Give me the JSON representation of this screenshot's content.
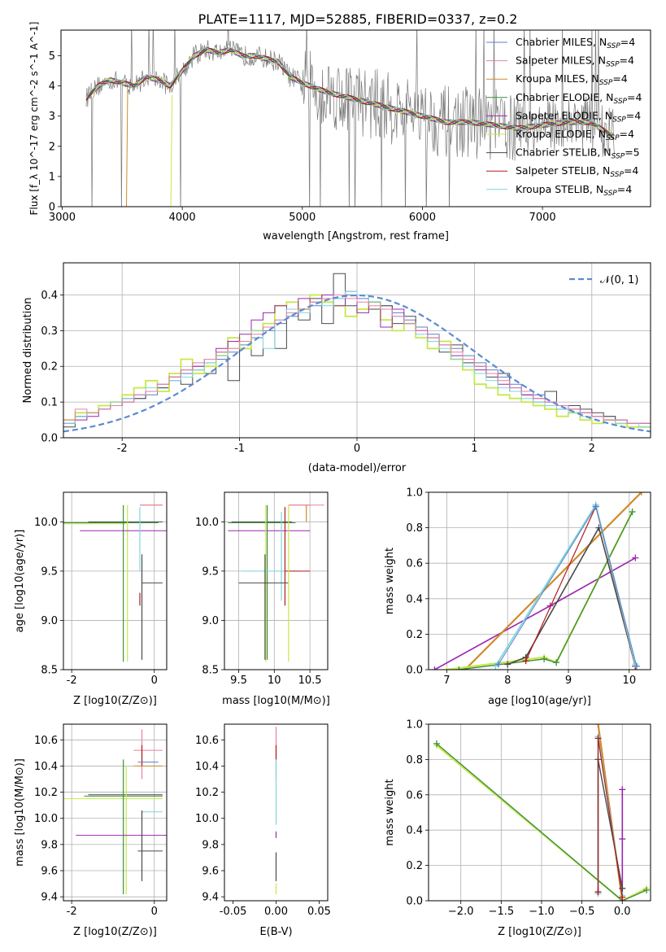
{
  "figure_title": "PLATE=1117, MJD=52885, FIBERID=0337, z=0.2",
  "colors": {
    "Chabrier MILES": "#5a7fc8",
    "Salpeter MILES": "#e87fa8",
    "Kroupa MILES": "#d18a2b",
    "Chabrier ELODIE": "#3f8f3f",
    "Salpeter ELODIE": "#9b27b0",
    "Kroupa ELODIE": "#c6e84a",
    "Chabrier STELIB": "#4a4a4a",
    "Salpeter STELIB": "#b31b1b",
    "Kroupa STELIB": "#7ed6de",
    "normal_curve": "#5b8bd0",
    "data": "#7a7a7a",
    "grid": "#b0b0b0"
  },
  "chart_data": [
    {
      "id": "spectrum",
      "type": "line",
      "title": "PLATE=1117, MJD=52885, FIBERID=0337, z=0.2",
      "xlabel": "wavelength [Angstrom, rest frame]",
      "ylabel": "Flux [f_λ 10^-17 erg cm^-2 s^-1 A^-1]",
      "xlim": [
        2990,
        7900
      ],
      "ylim": [
        0,
        5.85
      ],
      "xticks": [
        3000,
        4000,
        5000,
        6000,
        7000
      ],
      "yticks": [
        0,
        1,
        2,
        3,
        4,
        5
      ],
      "grid": false,
      "legend_position": "top-right",
      "legend": [
        {
          "label": "Chabrier MILES, N",
          "sub": "SSP",
          "tail": "=4"
        },
        {
          "label": "Salpeter MILES, N",
          "sub": "SSP",
          "tail": "=4"
        },
        {
          "label": "Kroupa MILES, N",
          "sub": "SSP",
          "tail": "=4"
        },
        {
          "label": "Chabrier ELODIE, N",
          "sub": "SSP",
          "tail": "=4"
        },
        {
          "label": "Salpeter ELODIE, N",
          "sub": "SSP",
          "tail": "=4"
        },
        {
          "label": "Kroupa ELODIE, N",
          "sub": "SSP",
          "tail": "=4"
        },
        {
          "label": "Chabrier STELIB, N",
          "sub": "SSP",
          "tail": "=5"
        },
        {
          "label": "Salpeter STELIB, N",
          "sub": "SSP",
          "tail": "=4"
        },
        {
          "label": "Kroupa STELIB, N",
          "sub": "SSP",
          "tail": "=4"
        }
      ],
      "model_continuum": {
        "x": [
          3200,
          3300,
          3400,
          3500,
          3600,
          3700,
          3800,
          3900,
          4000,
          4100,
          4200,
          4300,
          4400,
          4500,
          4600,
          4700,
          4800,
          4900,
          5000,
          5200,
          5400,
          5600,
          5800,
          6000,
          6200,
          6400,
          6600,
          6800,
          7000,
          7200,
          7400,
          7600
        ],
        "y": [
          3.6,
          4.0,
          4.2,
          4.1,
          4.0,
          4.3,
          4.2,
          4.0,
          4.5,
          5.0,
          5.2,
          5.1,
          5.2,
          5.0,
          5.0,
          4.9,
          4.8,
          4.3,
          4.1,
          3.8,
          3.6,
          3.4,
          3.2,
          3.0,
          2.8,
          2.8,
          2.7,
          2.6,
          2.7,
          2.8,
          2.8,
          2.3
        ]
      },
      "observed_data_note": "noisy observed spectrum drawn in grey"
    },
    {
      "id": "residuals",
      "type": "step",
      "xlabel": "(data-model)/error",
      "ylabel": "Normed distribution",
      "xlim": [
        -2.5,
        2.5
      ],
      "ylim": [
        0,
        0.49
      ],
      "xticks": [
        -2,
        -1,
        0,
        1,
        2
      ],
      "yticks": [
        0.0,
        0.1,
        0.2,
        0.3,
        0.4
      ],
      "grid": true,
      "legend_position": "top-right",
      "legend": "𝒩(0, 1)",
      "bin_width": 0.1,
      "histogram_series": [
        {
          "model": "Chabrier MILES",
          "values": [
            0.04,
            0.06,
            0.07,
            0.08,
            0.09,
            0.1,
            0.11,
            0.12,
            0.14,
            0.16,
            0.18,
            0.2,
            0.21,
            0.22,
            0.24,
            0.26,
            0.28,
            0.3,
            0.32,
            0.34,
            0.36,
            0.37,
            0.38,
            0.39,
            0.4,
            0.39,
            0.38,
            0.37,
            0.35,
            0.33,
            0.31,
            0.29,
            0.27,
            0.25,
            0.23,
            0.21,
            0.19,
            0.17,
            0.15,
            0.13,
            0.12,
            0.1,
            0.09,
            0.08,
            0.07,
            0.06,
            0.06,
            0.05,
            0.04,
            0.04
          ]
        },
        {
          "model": "Chabrier STELIB",
          "values": [
            0.03,
            0.06,
            0.07,
            0.08,
            0.09,
            0.1,
            0.11,
            0.13,
            0.14,
            0.17,
            0.15,
            0.19,
            0.18,
            0.24,
            0.16,
            0.27,
            0.23,
            0.31,
            0.25,
            0.36,
            0.33,
            0.39,
            0.32,
            0.46,
            0.37,
            0.4,
            0.36,
            0.37,
            0.32,
            0.34,
            0.3,
            0.28,
            0.24,
            0.26,
            0.21,
            0.2,
            0.17,
            0.18,
            0.13,
            0.12,
            0.1,
            0.13,
            0.09,
            0.09,
            0.08,
            0.07,
            0.06,
            0.05,
            0.04,
            0.04
          ]
        },
        {
          "model": "Kroupa ELODIE",
          "values": [
            0.05,
            0.07,
            0.07,
            0.09,
            0.1,
            0.12,
            0.14,
            0.16,
            0.13,
            0.18,
            0.22,
            0.18,
            0.2,
            0.23,
            0.28,
            0.25,
            0.3,
            0.32,
            0.37,
            0.38,
            0.36,
            0.4,
            0.38,
            0.37,
            0.34,
            0.36,
            0.38,
            0.33,
            0.3,
            0.32,
            0.28,
            0.25,
            0.27,
            0.22,
            0.19,
            0.15,
            0.14,
            0.12,
            0.11,
            0.1,
            0.09,
            0.08,
            0.06,
            0.07,
            0.05,
            0.04,
            0.05,
            0.04,
            0.03,
            0.03
          ]
        },
        {
          "model": "Salpeter ELODIE",
          "values": [
            0.04,
            0.05,
            0.06,
            0.08,
            0.09,
            0.11,
            0.12,
            0.13,
            0.15,
            0.17,
            0.19,
            0.2,
            0.22,
            0.25,
            0.27,
            0.29,
            0.33,
            0.35,
            0.37,
            0.36,
            0.39,
            0.38,
            0.4,
            0.37,
            0.41,
            0.35,
            0.38,
            0.31,
            0.36,
            0.32,
            0.3,
            0.27,
            0.26,
            0.23,
            0.22,
            0.19,
            0.18,
            0.15,
            0.14,
            0.12,
            0.11,
            0.1,
            0.08,
            0.08,
            0.07,
            0.06,
            0.05,
            0.05,
            0.04,
            0.04
          ]
        },
        {
          "model": "Kroupa STELIB",
          "values": [
            0.04,
            0.06,
            0.07,
            0.08,
            0.1,
            0.11,
            0.12,
            0.14,
            0.15,
            0.16,
            0.17,
            0.19,
            0.21,
            0.23,
            0.25,
            0.27,
            0.3,
            0.25,
            0.33,
            0.36,
            0.35,
            0.38,
            0.37,
            0.39,
            0.41,
            0.4,
            0.38,
            0.36,
            0.34,
            0.32,
            0.29,
            0.27,
            0.25,
            0.22,
            0.2,
            0.18,
            0.16,
            0.14,
            0.13,
            0.11,
            0.1,
            0.09,
            0.08,
            0.07,
            0.06,
            0.06,
            0.05,
            0.04,
            0.04,
            0.03
          ]
        },
        {
          "model": "Salpeter MILES",
          "values": [
            0.05,
            0.08,
            0.07,
            0.08,
            0.09,
            0.1,
            0.12,
            0.13,
            0.15,
            0.17,
            0.19,
            0.21,
            0.22,
            0.24,
            0.25,
            0.27,
            0.29,
            0.31,
            0.33,
            0.35,
            0.36,
            0.38,
            0.39,
            0.4,
            0.39,
            0.38,
            0.37,
            0.36,
            0.34,
            0.32,
            0.3,
            0.28,
            0.26,
            0.24,
            0.22,
            0.2,
            0.18,
            0.16,
            0.14,
            0.13,
            0.11,
            0.1,
            0.09,
            0.08,
            0.07,
            0.06,
            0.05,
            0.05,
            0.04,
            0.04
          ]
        }
      ],
      "normal_curve": {
        "mean": 0,
        "sigma": 1
      }
    },
    {
      "id": "age_vs_Z",
      "type": "scatter",
      "xlabel": "Z [log10(Z/Z⊙)]",
      "ylabel": "age [log10(age/yr)]",
      "xlim": [
        -2.2,
        0.3
      ],
      "ylim": [
        8.5,
        10.3
      ],
      "xticks": [
        -2,
        0
      ],
      "yticks": [
        8.5,
        9.0,
        9.5,
        10.0
      ],
      "grid": true
    },
    {
      "id": "age_vs_mass",
      "type": "scatter",
      "xlabel": "mass [log10(M/M⊙)]",
      "xlim": [
        9.3,
        10.75
      ],
      "ylim": [
        8.5,
        10.3
      ],
      "xticks": [
        9.5,
        10.0,
        10.5
      ],
      "yticks": [
        8.5,
        9.0,
        9.5,
        10.0
      ],
      "grid": true
    },
    {
      "id": "weight_vs_age",
      "type": "line",
      "xlabel": "age [log10(age/yr)]",
      "ylabel": "mass weight",
      "xlim": [
        6.7,
        10.35
      ],
      "ylim": [
        0,
        1.0
      ],
      "xticks": [
        7,
        8,
        9,
        10
      ],
      "yticks": [
        0.0,
        0.2,
        0.4,
        0.6,
        0.8,
        1.0
      ],
      "grid": true
    },
    {
      "id": "mass_vs_Z",
      "type": "scatter",
      "xlabel": "Z [log10(Z/Z⊙)]",
      "ylabel": "mass [log10(M/M⊙)]",
      "xlim": [
        -2.2,
        0.3
      ],
      "ylim": [
        9.37,
        10.72
      ],
      "xticks": [
        -2,
        0
      ],
      "yticks": [
        9.4,
        9.6,
        9.8,
        10.0,
        10.2,
        10.4,
        10.6
      ],
      "grid": true
    },
    {
      "id": "mass_vs_EBV",
      "type": "scatter",
      "xlabel": "E(B-V)",
      "xlim": [
        -0.06,
        0.06
      ],
      "ylim": [
        9.37,
        10.72
      ],
      "xticks": [
        -0.05,
        0.0,
        0.05
      ],
      "yticks": [
        9.4,
        9.6,
        9.8,
        10.0,
        10.2,
        10.4,
        10.6
      ],
      "grid": false
    },
    {
      "id": "weight_vs_Z",
      "type": "line",
      "xlabel": "Z [log10(Z/Z⊙)]",
      "ylabel": "mass weight",
      "xlim": [
        -2.4,
        0.35
      ],
      "ylim": [
        0,
        1.0
      ],
      "xticks": [
        -2.0,
        -1.5,
        -1.0,
        -0.5,
        0.0
      ],
      "yticks": [
        0.0,
        0.2,
        0.4,
        0.6,
        0.8,
        1.0
      ],
      "grid": true
    }
  ]
}
